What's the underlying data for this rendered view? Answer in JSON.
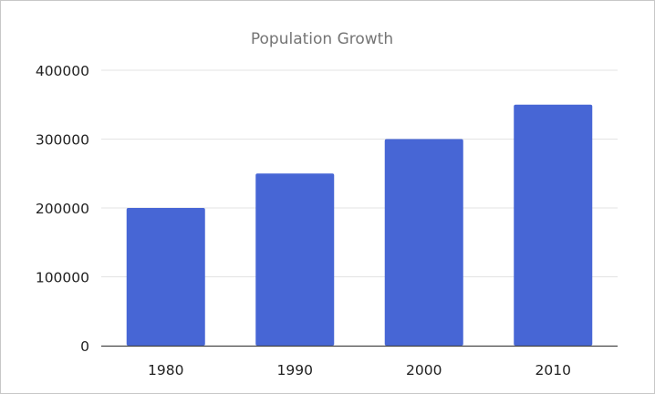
{
  "chart_data": {
    "type": "bar",
    "title": "Population Growth",
    "categories": [
      "1980",
      "1990",
      "2000",
      "2010"
    ],
    "values": [
      200000,
      250000,
      300000,
      350000
    ],
    "ylim": [
      0,
      400000
    ],
    "yticks": [
      "0",
      "100000",
      "200000",
      "300000",
      "400000"
    ],
    "grid": true,
    "legend": "none",
    "bar_color": "#4766d5",
    "grid_color": "#e3e3e3",
    "axis_color": "#444444"
  }
}
